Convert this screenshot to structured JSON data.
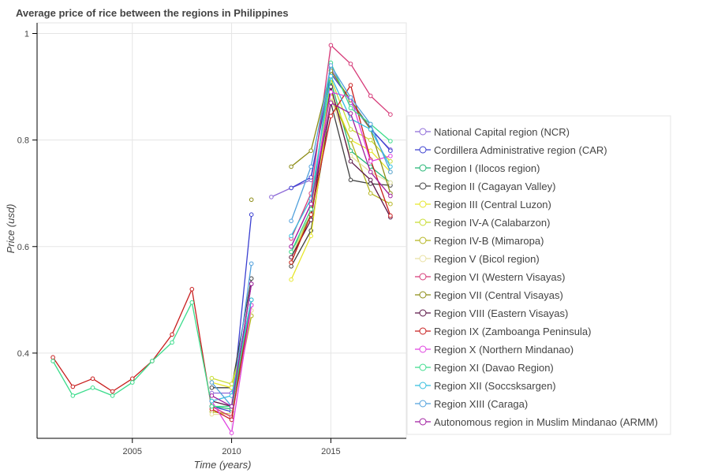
{
  "chart_data": {
    "type": "line",
    "title": "Average price of rice between the regions in Philippines",
    "xlabel": "Time (years)",
    "ylabel": "Price (usd)",
    "xlim": [
      2000.2,
      2018.8
    ],
    "ylim": [
      0.24,
      1.02
    ],
    "xticks": [
      2005,
      2010,
      2015
    ],
    "yticks": [
      0.4,
      0.6,
      0.8,
      1
    ],
    "ytick_labels": [
      "0.4",
      "0.6",
      "0.8",
      "1"
    ],
    "grid": true,
    "legend_position": "right",
    "series": [
      {
        "name": "National Capital region (NCR)",
        "color": "#8e6bd8",
        "points": [
          [
            2009,
            0.325
          ],
          [
            2010,
            0.325
          ],
          [
            2011,
            0.5
          ],
          null,
          [
            2012,
            0.693
          ],
          [
            2013,
            0.71
          ],
          [
            2014,
            0.725
          ],
          [
            2015,
            0.935
          ],
          [
            2016,
            0.87
          ],
          [
            2017,
            0.82
          ],
          [
            2018,
            0.782
          ]
        ]
      },
      {
        "name": "Cordillera Administrative region (CAR)",
        "color": "#3a3fd0",
        "points": [
          [
            2009,
            0.3
          ],
          [
            2010,
            0.29
          ],
          [
            2011,
            0.66
          ],
          null,
          [
            2013,
            0.71
          ],
          [
            2014,
            0.73
          ],
          [
            2015,
            0.925
          ],
          [
            2016,
            0.875
          ],
          [
            2017,
            0.822
          ],
          [
            2018,
            0.78
          ]
        ]
      },
      {
        "name": "Region I (Ilocos region)",
        "color": "#22b573",
        "points": [
          [
            2009,
            0.3
          ],
          [
            2010,
            0.295
          ],
          [
            2011,
            0.49
          ],
          null,
          [
            2013,
            0.59
          ],
          [
            2014,
            0.66
          ],
          [
            2015,
            0.91
          ],
          [
            2016,
            0.78
          ],
          [
            2017,
            0.75
          ],
          [
            2018,
            0.72
          ]
        ]
      },
      {
        "name": "Region II (Cagayan Valley)",
        "color": "#404040",
        "points": [
          [
            2009,
            0.335
          ],
          [
            2010,
            0.335
          ],
          [
            2011,
            0.54
          ],
          null,
          [
            2013,
            0.563
          ],
          [
            2014,
            0.63
          ],
          [
            2015,
            0.87
          ],
          [
            2016,
            0.725
          ],
          [
            2017,
            0.718
          ],
          [
            2018,
            0.715
          ]
        ]
      },
      {
        "name": "Region III (Central Luzon)",
        "color": "#e6e62a",
        "points": [
          [
            2009,
            0.345
          ],
          [
            2010,
            0.335
          ],
          [
            2011,
            0.48
          ],
          null,
          [
            2013,
            0.538
          ],
          [
            2014,
            0.62
          ],
          [
            2015,
            0.89
          ],
          [
            2016,
            0.8
          ],
          [
            2017,
            0.78
          ],
          [
            2018,
            0.74
          ]
        ]
      },
      {
        "name": "Region IV-A (Calabarzon)",
        "color": "#c8dc32",
        "points": [
          [
            2009,
            0.353
          ],
          [
            2010,
            0.342
          ],
          [
            2011,
            0.47
          ],
          null,
          [
            2013,
            0.58
          ],
          [
            2014,
            0.66
          ],
          [
            2015,
            0.915
          ],
          [
            2016,
            0.82
          ],
          [
            2017,
            0.8
          ],
          [
            2018,
            0.76
          ]
        ]
      },
      {
        "name": "Region IV-B (Mimaropa)",
        "color": "#b4b41e",
        "points": [
          [
            2009,
            0.29
          ],
          [
            2010,
            0.285
          ],
          [
            2011,
            0.47
          ],
          null,
          [
            2013,
            0.57
          ],
          [
            2014,
            0.66
          ],
          [
            2015,
            0.88
          ],
          [
            2016,
            0.8
          ],
          [
            2017,
            0.7
          ],
          [
            2018,
            0.68
          ]
        ]
      },
      {
        "name": "Region V (Bicol region)",
        "color": "#e8e0a0",
        "points": [
          [
            2009,
            0.285
          ],
          [
            2010,
            0.285
          ],
          [
            2011,
            0.48
          ],
          null,
          [
            2013,
            0.58
          ],
          [
            2014,
            0.67
          ],
          [
            2015,
            0.88
          ],
          [
            2016,
            0.77
          ],
          [
            2017,
            0.74
          ],
          [
            2018,
            0.72
          ]
        ]
      },
      {
        "name": "Region VI (Western Visayas)",
        "color": "#d63a78",
        "points": [
          [
            2009,
            0.3
          ],
          [
            2010,
            0.28
          ],
          [
            2011,
            0.49
          ],
          null,
          [
            2013,
            0.615
          ],
          [
            2014,
            0.7
          ],
          [
            2015,
            0.978
          ],
          [
            2016,
            0.943
          ],
          [
            2017,
            0.883
          ],
          [
            2018,
            0.848
          ]
        ]
      },
      {
        "name": "Region VII (Central Visayas)",
        "color": "#8c8c14",
        "points": [
          [
            2011,
            0.688
          ],
          null,
          [
            2013,
            0.75
          ],
          [
            2014,
            0.78
          ],
          [
            2015,
            0.93
          ],
          [
            2016,
            0.875
          ],
          [
            2017,
            0.82
          ],
          [
            2018,
            0.7
          ]
        ]
      },
      {
        "name": "Region VIII (Eastern Visayas)",
        "color": "#5a1446",
        "points": [
          [
            2009,
            0.31
          ],
          [
            2010,
            0.3
          ],
          [
            2011,
            0.53
          ],
          null,
          [
            2013,
            0.58
          ],
          [
            2014,
            0.65
          ],
          [
            2015,
            0.9
          ],
          [
            2016,
            0.76
          ],
          [
            2017,
            0.725
          ],
          [
            2018,
            0.655
          ]
        ]
      },
      {
        "name": "Region IX (Zamboanga Peninsula)",
        "color": "#c81e1e",
        "points": [
          [
            2001,
            0.392
          ],
          [
            2002,
            0.337
          ],
          [
            2003,
            0.352
          ],
          [
            2004,
            0.328
          ],
          [
            2005,
            0.352
          ],
          [
            2006,
            0.385
          ],
          [
            2007,
            0.435
          ],
          [
            2008,
            0.52
          ],
          [
            2009,
            0.295
          ],
          [
            2010,
            0.275
          ],
          [
            2011,
            0.5
          ],
          null,
          [
            2013,
            0.57
          ],
          [
            2014,
            0.66
          ],
          [
            2015,
            0.845
          ],
          [
            2016,
            0.903
          ],
          [
            2017,
            0.763
          ],
          [
            2018,
            0.658
          ]
        ]
      },
      {
        "name": "Region X (Northern Mindanao)",
        "color": "#e040e0",
        "points": [
          [
            2009,
            0.31
          ],
          [
            2010,
            0.25
          ],
          [
            2011,
            0.49
          ],
          null,
          [
            2013,
            0.6
          ],
          [
            2014,
            0.68
          ],
          [
            2015,
            0.89
          ],
          [
            2016,
            0.88
          ],
          [
            2017,
            0.76
          ],
          [
            2018,
            0.77
          ]
        ]
      },
      {
        "name": "Region XI (Davao Region)",
        "color": "#3cdc8c",
        "points": [
          [
            2001,
            0.385
          ],
          [
            2002,
            0.32
          ],
          [
            2003,
            0.335
          ],
          [
            2004,
            0.32
          ],
          [
            2005,
            0.345
          ],
          [
            2006,
            0.385
          ],
          [
            2007,
            0.42
          ],
          [
            2008,
            0.495
          ],
          [
            2009,
            0.3
          ],
          [
            2010,
            0.3
          ],
          [
            2011,
            0.5
          ],
          null,
          [
            2013,
            0.59
          ],
          [
            2014,
            0.67
          ],
          [
            2015,
            0.945
          ],
          [
            2016,
            0.86
          ],
          [
            2017,
            0.83
          ],
          [
            2018,
            0.798
          ]
        ]
      },
      {
        "name": "Region XII (Soccsksargen)",
        "color": "#32bede",
        "points": [
          [
            2009,
            0.31
          ],
          [
            2010,
            0.32
          ],
          [
            2011,
            0.5
          ],
          null,
          [
            2013,
            0.62
          ],
          [
            2014,
            0.69
          ],
          [
            2015,
            0.92
          ],
          [
            2016,
            0.84
          ],
          [
            2017,
            0.82
          ],
          [
            2018,
            0.75
          ]
        ]
      },
      {
        "name": "Region XIII (Caraga)",
        "color": "#50a0dc",
        "points": [
          [
            2009,
            0.345
          ],
          [
            2010,
            0.3
          ],
          [
            2011,
            0.568
          ],
          null,
          [
            2013,
            0.648
          ],
          [
            2014,
            0.75
          ],
          [
            2015,
            0.94
          ],
          [
            2016,
            0.88
          ],
          [
            2017,
            0.83
          ],
          [
            2018,
            0.74
          ]
        ]
      },
      {
        "name": "Autonomous region in Muslim Mindanao (ARMM)",
        "color": "#a01ea0",
        "points": [
          [
            2009,
            0.32
          ],
          [
            2010,
            0.3
          ],
          [
            2011,
            0.53
          ],
          null,
          [
            2013,
            0.6
          ],
          [
            2014,
            0.68
          ],
          [
            2015,
            0.87
          ],
          [
            2016,
            0.85
          ],
          [
            2017,
            0.74
          ],
          [
            2018,
            0.695
          ]
        ]
      }
    ]
  }
}
